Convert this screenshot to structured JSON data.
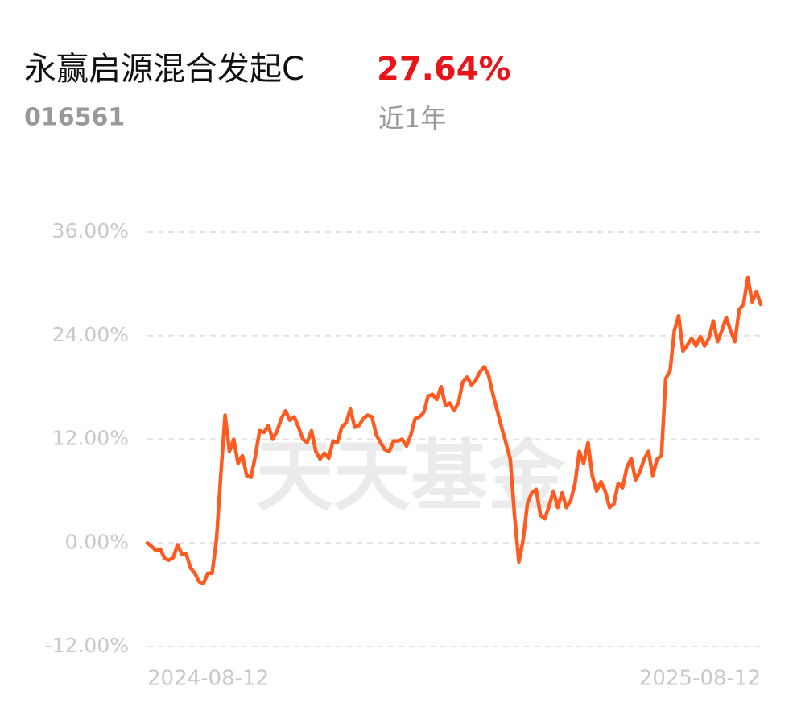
{
  "chart_data": {
    "type": "line",
    "title": "永赢启源混合发起C",
    "return": "27.64%",
    "code": "016561",
    "period": "近1年",
    "watermark": "天天基金",
    "categories": [
      "2024-08-12",
      null,
      null,
      null,
      null,
      null,
      null,
      null,
      null,
      null,
      null,
      null,
      null,
      null,
      null,
      null,
      null,
      null,
      null,
      null,
      null,
      null,
      null,
      null,
      null,
      null,
      null,
      null,
      null,
      null,
      null,
      null,
      null,
      null,
      null,
      null,
      null,
      null,
      null,
      null,
      null,
      null,
      null,
      null,
      null,
      null,
      null,
      null,
      null,
      null,
      null,
      null,
      null,
      null,
      null,
      null,
      null,
      null,
      null,
      null,
      null,
      null,
      null,
      null,
      null,
      null,
      null,
      null,
      null,
      null,
      null,
      null,
      null,
      null,
      null,
      null,
      null,
      null,
      null,
      null,
      null,
      null,
      null,
      null,
      null,
      null,
      null,
      null,
      null,
      null,
      null,
      null,
      null,
      null,
      null,
      null,
      null,
      null,
      null,
      null,
      null,
      null,
      null,
      null,
      null,
      null,
      null,
      null,
      null,
      null,
      null,
      null,
      null,
      null,
      null,
      null,
      null,
      null,
      null,
      null,
      null,
      null,
      null,
      null,
      null,
      null,
      null,
      null,
      null,
      null,
      null,
      null,
      null,
      null,
      null,
      null,
      null,
      null,
      null,
      null,
      null,
      null,
      "2025-08-12"
    ],
    "series": [
      {
        "color": "#ff5a1f",
        "values": [
          0,
          -0.4,
          -0.9,
          -0.7,
          -1.8,
          -2,
          -1.7,
          -0.2,
          -1.3,
          -1.3,
          -2.9,
          -3.5,
          -4.5,
          -4.7,
          -3.5,
          -3.5,
          0.4,
          7.8,
          14.8,
          10.6,
          12,
          9.2,
          10.1,
          7.8,
          7.6,
          10.1,
          13,
          12.8,
          13.6,
          12,
          12.9,
          14.4,
          15.3,
          14.2,
          14.6,
          13.4,
          12,
          11.6,
          13,
          10.6,
          9.7,
          10.4,
          9.8,
          11.8,
          11.6,
          13.4,
          13.9,
          15.5,
          13.4,
          13.6,
          14.4,
          14.8,
          14.6,
          12.5,
          11.6,
          10.8,
          10.6,
          11.8,
          11.8,
          12,
          11.2,
          12.5,
          14.4,
          14.6,
          15.1,
          17,
          17.2,
          16.6,
          18.1,
          15.9,
          16.2,
          15.3,
          16.2,
          18.6,
          19.2,
          18.3,
          18.8,
          19.8,
          20.4,
          19.4,
          17.2,
          15.3,
          13.4,
          11.6,
          9.7,
          3.2,
          -2.2,
          0.4,
          4.6,
          5.8,
          6.2,
          3.2,
          2.8,
          4.3,
          6,
          4.1,
          5.8,
          4.1,
          4.9,
          6.9,
          10.6,
          9.2,
          11.6,
          7.8,
          6,
          7.1,
          6,
          4.1,
          4.5,
          6.9,
          6.4,
          8.7,
          9.8,
          7.3,
          8.2,
          9.7,
          10.6,
          7.8,
          9.7,
          10.1,
          19,
          19.9,
          24.6,
          26.3,
          22.2,
          22.9,
          23.7,
          22.8,
          23.9,
          22.8,
          23.7,
          25.7,
          23.3,
          24.6,
          26.1,
          24.6,
          23.3,
          27,
          27.6,
          30.7,
          27.9,
          29.1,
          27.6
        ]
      }
    ],
    "ylim": [
      -12,
      36
    ],
    "yticks": [
      {
        "value": 36,
        "label": "36.00%"
      },
      {
        "value": 24,
        "label": "24.00%"
      },
      {
        "value": 12,
        "label": "12.00%"
      },
      {
        "value": 0,
        "label": "0.00%"
      },
      {
        "value": -12,
        "label": "-12.00%"
      }
    ],
    "grid": true
  }
}
